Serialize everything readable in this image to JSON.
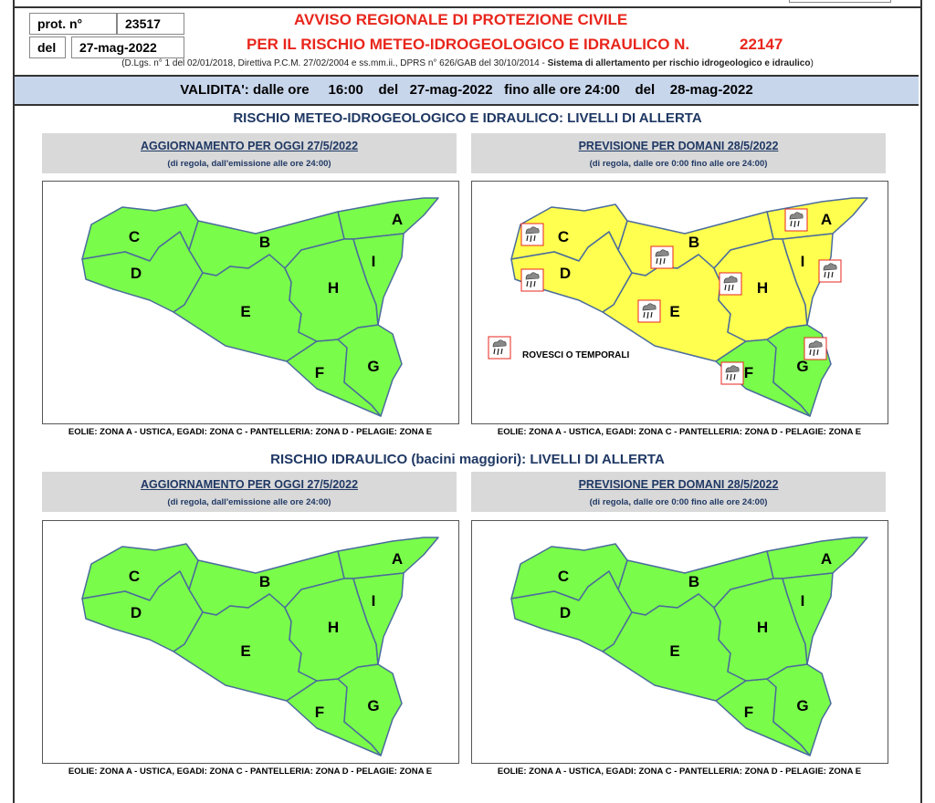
{
  "header": {
    "prot_label": "prot. n°",
    "prot_value": "23517",
    "del_label": "del",
    "del_value": "27-mag-2022",
    "title_line1": "AVVISO REGIONALE DI PROTEZIONE CIVILE",
    "title_line2": "PER IL RISCHIO METEO-IDROGEOLOGICO E IDRAULICO N.",
    "number": "22147",
    "legal": "(D.Lgs. n° 1 del 02/01/2018, Direttiva P.C.M. 27/02/2004 e ss.mm.ii., DPRS n° 626/GAB del 30/10/2014 - ",
    "legal_bold": "Sistema di allertamento per rischio idrogeologico e idraulico",
    "legal_end": ")",
    "validity": "VALIDITA': dalle ore     16:00    del   27-mag-2022   fino alle ore 24:00    del    28-mag-2022"
  },
  "colors": {
    "green": "#7afc4a",
    "yellow": "#ffff4f",
    "border": "#4a6b9c",
    "icon_border": "#e8261c"
  },
  "sections": [
    {
      "title": "RISCHIO METEO-IDROGEOLOGICO E IDRAULICO: LIVELLI DI ALLERTA",
      "panels": [
        {
          "heading": "AGGIORNAMENTO PER OGGI 27/5/2022",
          "sub": "(di regola, dall'emissione alle ore 24:00)",
          "yellow": [],
          "icons": false,
          "caption": "EOLIE: ZONA A - USTICA, EGADI: ZONA C - PANTELLERIA: ZONA D - PELAGIE: ZONA E"
        },
        {
          "heading": "PREVISIONE PER DOMANI 28/5/2022",
          "sub": "(di regola, dalle ore 0:00 fino alle ore 24:00)",
          "yellow": [
            "A",
            "B",
            "C",
            "D",
            "E",
            "H",
            "I"
          ],
          "icons": true,
          "legend": "ROVESCI O TEMPORALI",
          "caption": "EOLIE: ZONA A - USTICA, EGADI: ZONA C - PANTELLERIA: ZONA D - PELAGIE: ZONA E"
        }
      ]
    },
    {
      "title": "RISCHIO IDRAULICO (bacini maggiori): LIVELLI DI ALLERTA",
      "panels": [
        {
          "heading": "AGGIORNAMENTO PER OGGI 27/5/2022",
          "sub": "(di regola, dall'emissione alle ore 24:00)",
          "yellow": [],
          "icons": false,
          "caption": "EOLIE: ZONA A - USTICA, EGADI: ZONA C - PANTELLERIA: ZONA D - PELAGIE: ZONA E"
        },
        {
          "heading": "PREVISIONE PER DOMANI 28/5/2022",
          "sub": "(di regola, dalle ore 0:00 fino alle ore 24:00)",
          "yellow": [],
          "icons": false,
          "caption": "EOLIE: ZONA A - USTICA, EGADI: ZONA C - PANTELLERIA: ZONA D - PELAGIE: ZONA E"
        }
      ]
    }
  ],
  "zones": [
    "A",
    "B",
    "C",
    "D",
    "E",
    "F",
    "G",
    "H",
    "I"
  ]
}
